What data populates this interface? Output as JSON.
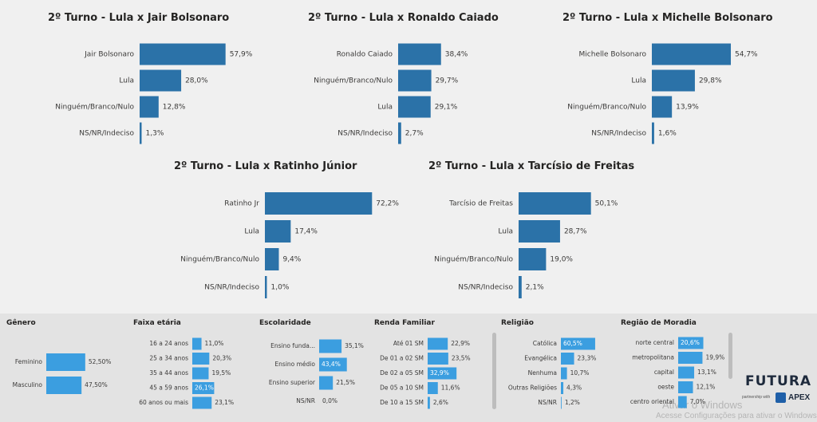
{
  "chart_data": [
    {
      "type": "bar",
      "title": "2º Turno - Lula x Jair Bolsonaro",
      "categories": [
        "Jair Bolsonaro",
        "Lula",
        "Ninguém/Branco/Nulo",
        "NS/NR/Indeciso"
      ],
      "values": [
        57.9,
        28.0,
        12.8,
        1.3
      ],
      "value_labels": [
        "57,9%",
        "28,0%",
        "12,8%",
        "1,3%"
      ]
    },
    {
      "type": "bar",
      "title": "2º Turno - Lula x Ronaldo Caiado",
      "categories": [
        "Ronaldo Caiado",
        "Ninguém/Branco/Nulo",
        "Lula",
        "NS/NR/Indeciso"
      ],
      "values": [
        38.4,
        29.7,
        29.1,
        2.7
      ],
      "value_labels": [
        "38,4%",
        "29,7%",
        "29,1%",
        "2,7%"
      ]
    },
    {
      "type": "bar",
      "title": "2º Turno - Lula x Michelle Bolsonaro",
      "categories": [
        "Michelle Bolsonaro",
        "Lula",
        "Ninguém/Branco/Nulo",
        "NS/NR/Indeciso"
      ],
      "values": [
        54.7,
        29.8,
        13.9,
        1.6
      ],
      "value_labels": [
        "54,7%",
        "29,8%",
        "13,9%",
        "1,6%"
      ]
    },
    {
      "type": "bar",
      "title": "2º Turno - Lula x Ratinho Júnior",
      "categories": [
        "Ratinho Jr",
        "Lula",
        "Ninguém/Branco/Nulo",
        "NS/NR/Indeciso"
      ],
      "values": [
        72.2,
        17.4,
        9.4,
        1.0
      ],
      "value_labels": [
        "72,2%",
        "17,4%",
        "9,4%",
        "1,0%"
      ]
    },
    {
      "type": "bar",
      "title": "2º Turno - Lula x Tarcísio de Freitas",
      "categories": [
        "Tarcísio de Freitas",
        "Lula",
        "Ninguém/Branco/Nulo",
        "NS/NR/Indeciso"
      ],
      "values": [
        50.1,
        28.7,
        19.0,
        2.1
      ],
      "value_labels": [
        "50,1%",
        "28,7%",
        "19,0%",
        "2,1%"
      ]
    },
    {
      "type": "bar",
      "title": "Gênero",
      "categories": [
        "Feminino",
        "Masculino"
      ],
      "values": [
        52.5,
        47.5
      ],
      "value_labels": [
        "52,50%",
        "47,50%"
      ]
    },
    {
      "type": "bar",
      "title": "Faixa etária",
      "categories": [
        "16 a 24 anos",
        "25 a 34 anos",
        "35 a 44 anos",
        "45 a 59 anos",
        "60 anos ou mais"
      ],
      "values": [
        11.0,
        20.3,
        19.5,
        26.1,
        23.1
      ],
      "value_labels": [
        "11,0%",
        "20,3%",
        "19,5%",
        "26,1%",
        "23,1%"
      ]
    },
    {
      "type": "bar",
      "title": "Escolaridade",
      "categories": [
        "Ensino funda...",
        "Ensino médio",
        "Ensino superior",
        "NS/NR"
      ],
      "values": [
        35.1,
        43.4,
        21.5,
        0.0
      ],
      "value_labels": [
        "35,1%",
        "43,4%",
        "21,5%",
        "0,0%"
      ]
    },
    {
      "type": "bar",
      "title": "Renda Familiar",
      "categories": [
        "Até 01 SM",
        "De 01 a 02 SM",
        "De 02 a 05 SM",
        "De 05 a 10 SM",
        "De 10 a 15 SM"
      ],
      "values": [
        22.9,
        23.5,
        32.9,
        11.6,
        2.6
      ],
      "value_labels": [
        "22,9%",
        "23,5%",
        "32,9%",
        "11,6%",
        "2,6%"
      ]
    },
    {
      "type": "bar",
      "title": "Religião",
      "categories": [
        "Católica",
        "Evangélica",
        "Nenhuma",
        "Outras Religiões",
        "NS/NR"
      ],
      "values": [
        60.5,
        23.3,
        10.7,
        4.3,
        1.2
      ],
      "value_labels": [
        "60,5%",
        "23,3%",
        "10,7%",
        "4,3%",
        "1,2%"
      ]
    },
    {
      "type": "bar",
      "title": "Região de Moradia",
      "categories": [
        "norte central",
        "metropolitana",
        "capital",
        "oeste",
        "centro oriental"
      ],
      "values": [
        20.6,
        19.9,
        13.1,
        12.1,
        7.0
      ],
      "value_labels": [
        "20,6%",
        "19,9%",
        "13,1%",
        "12,1%",
        "7,0%"
      ]
    }
  ],
  "colors": {
    "bar_main": "#2b72a8",
    "bar_slicer": "#3b9ee0",
    "label_text": "#3b3a39",
    "title_text": "#252423"
  },
  "brand": {
    "logo": "FUTURA",
    "partner": "partnership with",
    "apex": "APEX"
  },
  "watermark": {
    "line1": "Ativar o Windows",
    "line2": "Acesse Configurações para ativar o Windows"
  }
}
